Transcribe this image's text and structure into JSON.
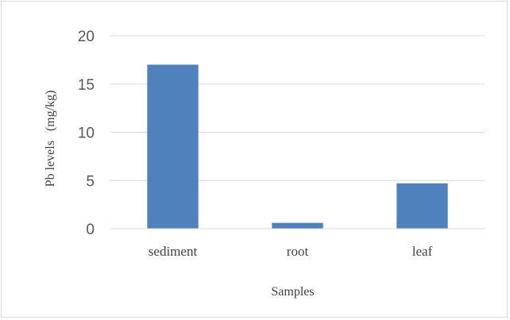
{
  "chart_data": {
    "type": "bar",
    "categories": [
      "sediment",
      "root",
      "leaf"
    ],
    "values": [
      17.0,
      0.6,
      4.7
    ],
    "xlabel": "Samples",
    "ylabel": "Pb levels   (mg/kg)",
    "ylim": [
      0,
      20
    ],
    "yticks": [
      0,
      5,
      10,
      15,
      20
    ],
    "grid": true,
    "legend": "none",
    "bar_color": "#4f81bd",
    "grid_color": "#d9d9d9"
  }
}
